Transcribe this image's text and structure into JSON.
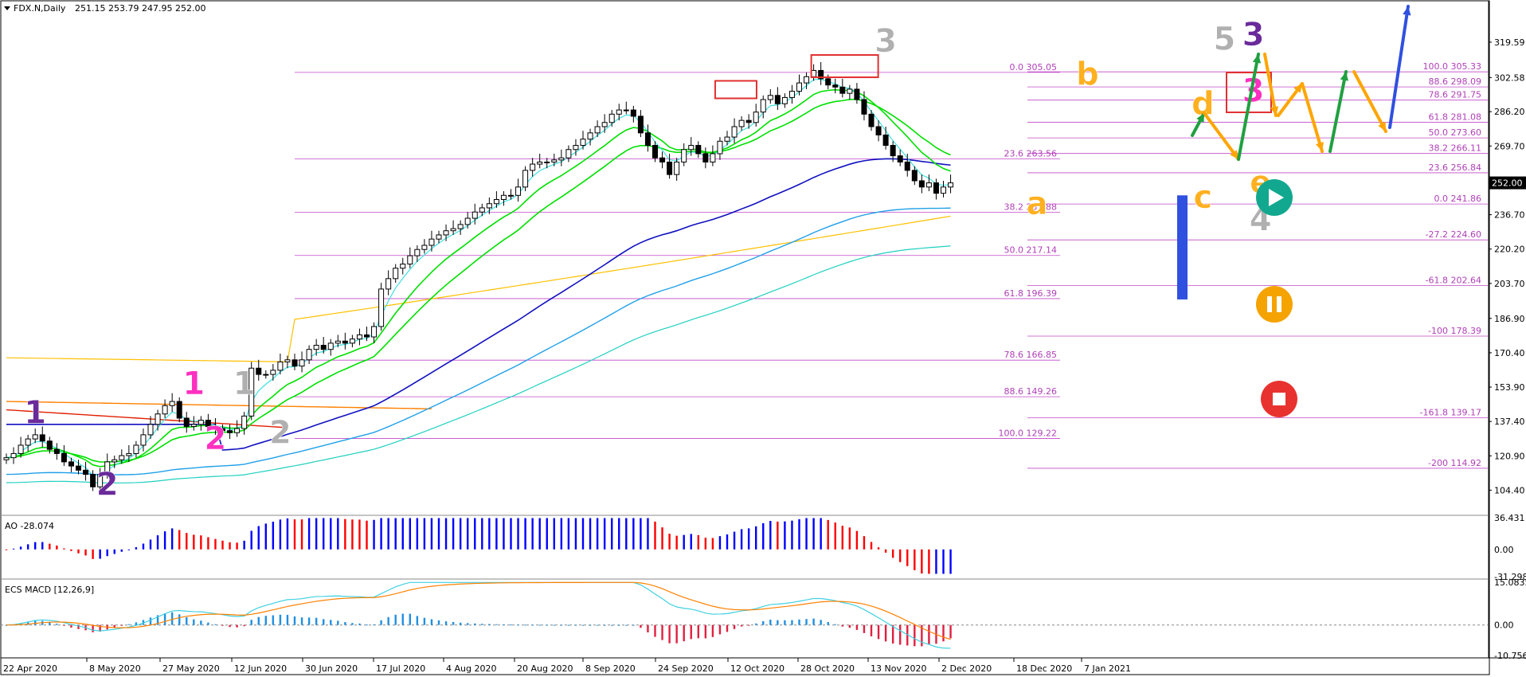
{
  "header": {
    "symbol": "FDX.N,Daily",
    "ohlc": "251.15 253.79 247.95 252.00"
  },
  "panels": {
    "ao_label": "AO -28.074",
    "macd_label": "ECS MACD [12,26,9]"
  },
  "colors": {
    "grid_fib": "#c048c8",
    "fib_text": "#b040b8",
    "candle": "#000000",
    "ema_green": "#00e000",
    "ema_cyan": "#40e0e0",
    "ma_blue": "#1010c0",
    "ma_lightblue": "#20a0e8",
    "ma_teal": "#20d0c0",
    "ma_orange": "#ff8000",
    "ma_red": "#e02000",
    "ma_yellow": "#ffc000",
    "ao_up": "#0000ff",
    "ao_down": "#ff0000",
    "wave_purple": "#6a2a9a",
    "wave_magenta": "#ff30c0",
    "wave_gray": "#b0b0b0",
    "wave_orange": "#ffb020",
    "arrow_green": "#20a040",
    "arrow_orange": "#ffa500",
    "arrow_blue": "#3050e0"
  },
  "chart_data": {
    "type": "candlestick",
    "symbol": "FDX.N",
    "timeframe": "Daily",
    "ylim": [
      95.0,
      336.0
    ],
    "price_ticks": [
      "319.59",
      "302.58",
      "286.20",
      "269.70",
      "252.00",
      "236.70",
      "220.20",
      "203.70",
      "186.90",
      "170.40",
      "153.90",
      "137.40",
      "120.90",
      "104.40"
    ],
    "current_price": "252.00",
    "x_dates": [
      "22 Apr 2020",
      "8 May 2020",
      "27 May 2020",
      "12 Jun 2020",
      "30 Jun 2020",
      "17 Jul 2020",
      "4 Aug 2020",
      "20 Aug 2020",
      "8 Sep 2020",
      "24 Sep 2020",
      "12 Oct 2020",
      "28 Oct 2020",
      "13 Nov 2020",
      "2 Dec 2020",
      "18 Dec 2020",
      "7 Jan 2021"
    ],
    "candles_close": [
      120,
      122,
      126,
      129,
      131,
      128,
      124,
      122,
      118,
      116,
      114,
      112,
      106,
      112,
      118,
      119,
      121,
      122,
      126,
      131,
      136,
      141,
      145,
      147,
      139,
      135,
      136,
      138,
      135,
      134,
      133,
      132,
      134,
      140,
      163,
      160,
      160,
      162,
      166,
      167,
      164,
      167,
      172,
      174,
      172,
      175,
      176,
      175,
      177,
      179,
      178,
      183,
      201,
      206,
      211,
      213,
      217,
      220,
      222,
      225,
      227,
      229,
      230,
      232,
      235,
      238,
      240,
      242,
      244,
      246,
      246,
      250,
      258,
      261,
      262,
      262,
      263,
      264,
      268,
      270,
      273,
      276,
      279,
      281,
      285,
      287,
      287,
      284,
      276,
      270,
      264,
      262,
      256,
      262,
      268,
      270,
      266,
      262,
      266,
      272,
      274,
      279,
      282,
      281,
      286,
      292,
      294,
      290,
      293,
      296,
      300,
      303,
      306,
      302,
      299,
      298,
      295,
      297,
      292,
      285,
      279,
      275,
      270,
      265,
      262,
      258,
      253,
      250,
      252,
      247,
      250,
      252
    ],
    "retracement_levels": [
      {
        "label": "0.0 305.05",
        "value": 305.05
      },
      {
        "label": "23.6 263.56",
        "value": 263.56
      },
      {
        "label": "38.2 237.88",
        "value": 237.88
      },
      {
        "label": "50.0 217.14",
        "value": 217.14
      },
      {
        "label": "61.8 196.39",
        "value": 196.39
      },
      {
        "label": "78.6 166.85",
        "value": 166.85
      },
      {
        "label": "88.6 149.26",
        "value": 149.26
      },
      {
        "label": "100.0 129.22",
        "value": 129.22
      }
    ],
    "extension_levels": [
      {
        "label": "100.0 305.33",
        "value": 305.33
      },
      {
        "label": "88.6 298.09",
        "value": 298.09
      },
      {
        "label": "78.6 291.75",
        "value": 291.75
      },
      {
        "label": "61.8 281.08",
        "value": 281.08
      },
      {
        "label": "50.0 273.60",
        "value": 273.6
      },
      {
        "label": "38.2 266.11",
        "value": 266.11
      },
      {
        "label": "23.6 256.84",
        "value": 256.84
      },
      {
        "label": "0.0 241.86",
        "value": 241.86
      },
      {
        "label": "-27.2 224.60",
        "value": 224.6
      },
      {
        "label": "-61.8 202.64",
        "value": 202.64
      },
      {
        "label": "-100 178.39",
        "value": 178.39
      },
      {
        "label": "-161.8 139.17",
        "value": 139.17
      },
      {
        "label": "-200 114.92",
        "value": 114.92
      }
    ],
    "wave_labels": [
      {
        "text": "1",
        "color": "purple",
        "price": 136.6,
        "date_index": 4
      },
      {
        "text": "2",
        "color": "purple",
        "price": 102.0,
        "date_index": 14
      },
      {
        "text": "1",
        "color": "magenta",
        "price": 150.5,
        "date_index": 26
      },
      {
        "text": "2",
        "color": "magenta",
        "price": 124.0,
        "date_index": 29
      },
      {
        "text": "1",
        "color": "gray",
        "price": 150.5,
        "date_index": 33
      },
      {
        "text": "2",
        "color": "gray",
        "price": 127.0,
        "date_index": 38
      },
      {
        "text": "3",
        "color": "gray",
        "price": 315.0,
        "date_index": 122
      },
      {
        "text": "a",
        "color": "orange",
        "price": 237.0,
        "date_index": 143
      },
      {
        "text": "b",
        "color": "orange",
        "price": 299.0,
        "date_index": 150
      },
      {
        "text": "d",
        "color": "orange",
        "price": 285.0,
        "date_index": 166
      },
      {
        "text": "c",
        "color": "orange",
        "price": 240.0,
        "date_index": 166
      },
      {
        "text": "5",
        "color": "gray",
        "price": 316.0,
        "date_index": 169
      },
      {
        "text": "3",
        "color": "purple",
        "price": 318.0,
        "date_index": 173
      },
      {
        "text": "3",
        "color": "magenta",
        "price": 291.0,
        "date_index": 173
      },
      {
        "text": "e",
        "color": "orange",
        "price": 247.0,
        "date_index": 174
      },
      {
        "text": "4",
        "color": "gray",
        "price": 229.0,
        "date_index": 174
      }
    ],
    "ao": {
      "name": "AO",
      "value": "-28.074",
      "ticks": [
        "36.431",
        "0.00",
        "-31.298"
      ]
    },
    "macd": {
      "name": "ECS MACD",
      "params": "12,26,9",
      "ticks": [
        "15.0835",
        "0.00",
        "-10.7567"
      ]
    }
  }
}
